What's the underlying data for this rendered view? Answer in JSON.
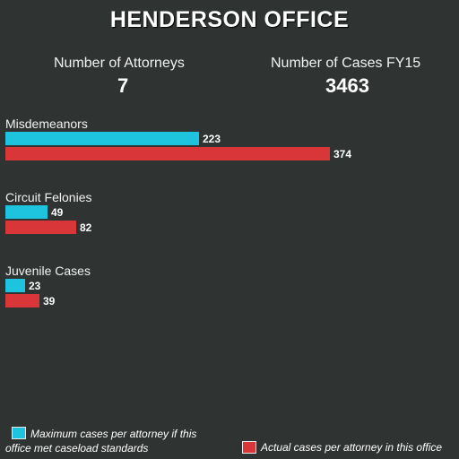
{
  "chart_data": {
    "type": "bar",
    "title": "HENDERSON OFFICE",
    "stats": [
      {
        "label": "Number of Attorneys",
        "value": "7"
      },
      {
        "label": "Number of Cases FY15",
        "value": "3463"
      }
    ],
    "categories": [
      "Misdemeanors",
      "Circuit Felonies",
      "Juvenile Cases"
    ],
    "series": [
      {
        "name": "Maximum cases per attorney if this office met caseload standards",
        "values": [
          223,
          49,
          23
        ],
        "color": "#1ec4de"
      },
      {
        "name": "Actual cases per attorney in this office",
        "values": [
          374,
          82,
          39
        ],
        "color": "#d9363a"
      }
    ],
    "orientation": "horizontal",
    "grid": false,
    "legend_position": "bottom"
  },
  "legend": {
    "max_line1": "Maximum cases per attorney if this",
    "max_line2": "office met caseload standards",
    "actual": "Actual cases per attorney in this office"
  }
}
